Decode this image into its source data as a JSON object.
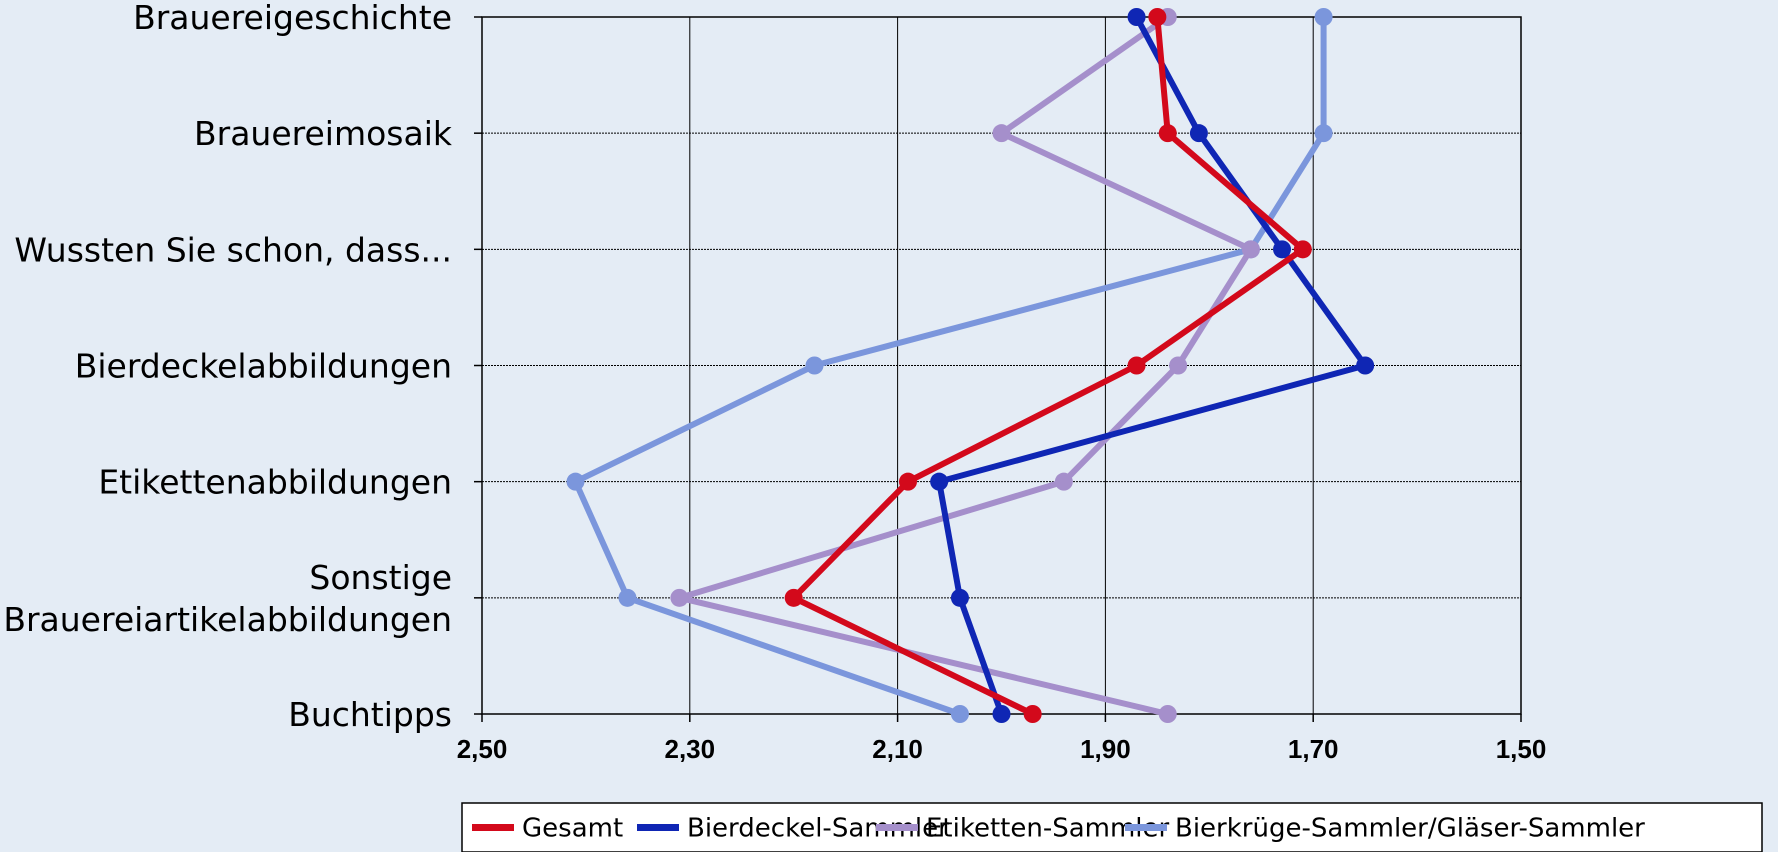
{
  "chart_data": {
    "type": "line",
    "orientation": "horizontal",
    "categories": [
      "Brauereigeschichte",
      "Brauereimosaik",
      "Wussten Sie schon, dass...",
      "Bierdeckelabbildungen",
      "Etikettenabbildungen",
      "Sonstige Brauereiartikelabbildungen",
      "Buchtipps"
    ],
    "category_lines": [
      [
        "Brauereigeschichte"
      ],
      [
        "Brauereimosaik"
      ],
      [
        "Wussten Sie schon, dass..."
      ],
      [
        "Bierdeckelabbildungen"
      ],
      [
        "Etikettenabbildungen"
      ],
      [
        "Sonstige",
        "Brauereiartikelabbildungen"
      ],
      [
        "Buchtipps"
      ]
    ],
    "xlim": [
      2.5,
      1.5
    ],
    "x_reversed": true,
    "x_ticks": [
      2.5,
      2.3,
      2.1,
      1.9,
      1.7,
      1.5
    ],
    "x_tick_labels": [
      "2,50",
      "2,30",
      "2,10",
      "1,90",
      "1,70",
      "1,50"
    ],
    "grid": true,
    "legend_position": "bottom",
    "series": [
      {
        "name": "Bierkrüge-Sammler/Gläser-Sammler",
        "color": "#7b96dc",
        "values": [
          1.69,
          1.69,
          1.76,
          2.18,
          2.41,
          2.36,
          2.04
        ]
      },
      {
        "name": "Etiketten-Sammler",
        "color": "#a58fcb",
        "values": [
          1.84,
          2.0,
          1.76,
          1.83,
          1.94,
          2.31,
          1.84
        ]
      },
      {
        "name": "Bierdeckel-Sammler",
        "color": "#0f26b4",
        "values": [
          1.87,
          1.81,
          1.73,
          1.65,
          2.06,
          2.04,
          2.0
        ]
      },
      {
        "name": "Gesamt",
        "color": "#d3091b",
        "values": [
          1.85,
          1.84,
          1.71,
          1.87,
          2.09,
          2.2,
          1.97
        ]
      }
    ],
    "legend_order": [
      "Gesamt",
      "Bierdeckel-Sammler",
      "Etiketten-Sammler",
      "Bierkrüge-Sammler/Gläser-Sammler"
    ]
  }
}
